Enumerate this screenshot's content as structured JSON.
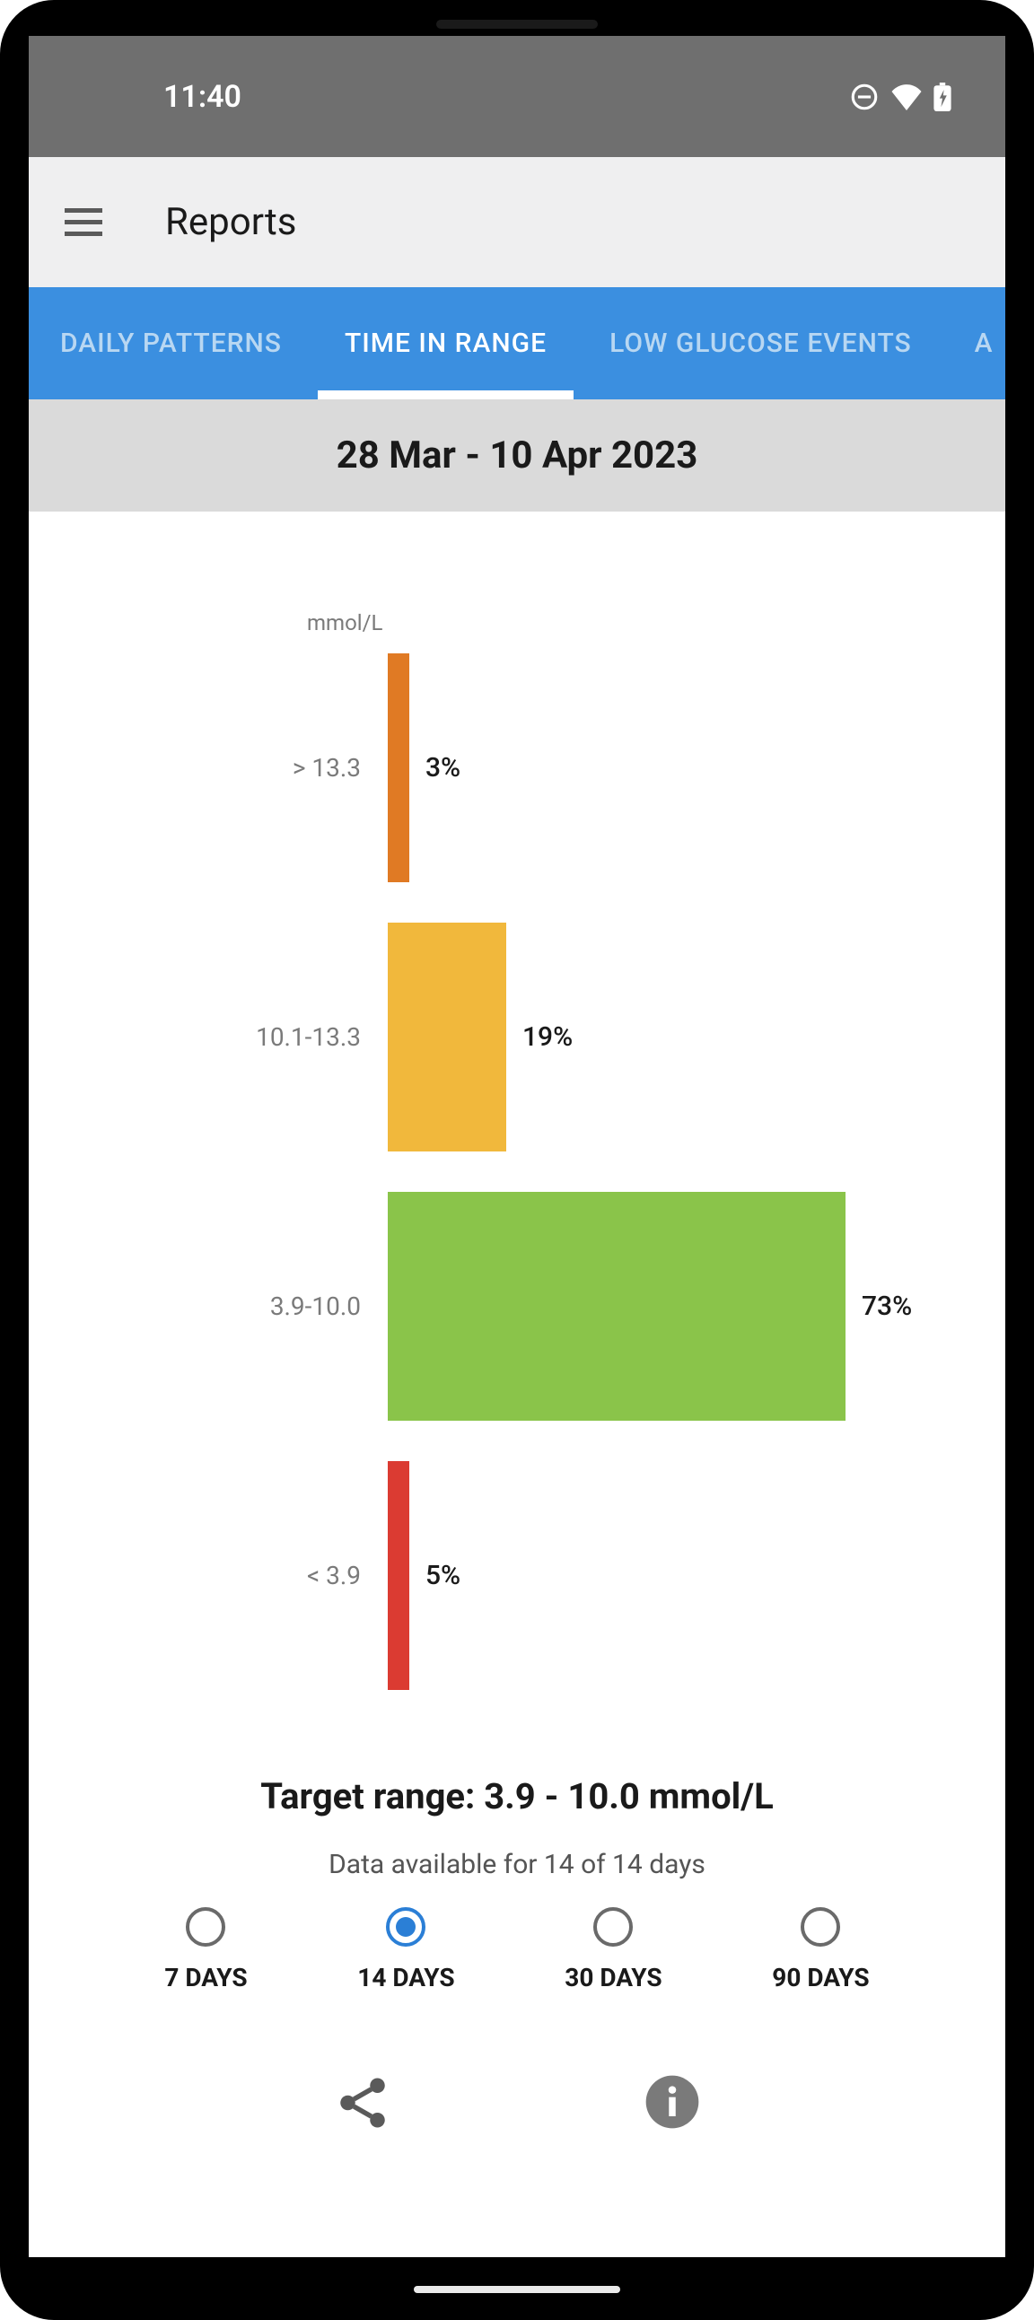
{
  "status": {
    "time": "11:40"
  },
  "header": {
    "title": "Reports"
  },
  "tabs": {
    "items": [
      {
        "label": "DAILY PATTERNS",
        "active": false
      },
      {
        "label": "TIME IN RANGE",
        "active": true
      },
      {
        "label": "LOW GLUCOSE EVENTS",
        "active": false
      },
      {
        "label": "A",
        "active": false
      }
    ]
  },
  "dateRange": "28 Mar - 10 Apr 2023",
  "chart": {
    "unit": "mmol/L",
    "type": "bar",
    "bars": [
      {
        "label": "> 13.3",
        "value": "3%",
        "percent": 3,
        "color": "#e07a24",
        "widthPx": 24
      },
      {
        "label": "10.1-13.3",
        "value": "19%",
        "percent": 19,
        "color": "#f1b83c",
        "widthPx": 132
      },
      {
        "label": "3.9-10.0",
        "value": "73%",
        "percent": 73,
        "color": "#8ac44a",
        "widthPx": 510
      },
      {
        "label": "< 3.9",
        "value": "5%",
        "percent": 5,
        "color": "#db3b32",
        "widthPx": 24
      }
    ],
    "barHeightPx": 255,
    "backgroundColor": "#ffffff"
  },
  "targetRange": "Target range: 3.9 - 10.0 mmol/L",
  "dataAvailable": "Data available for 14 of 14 days",
  "periods": {
    "options": [
      {
        "label": "7 DAYS",
        "selected": false
      },
      {
        "label": "14 DAYS",
        "selected": true
      },
      {
        "label": "30 DAYS",
        "selected": false
      },
      {
        "label": "90 DAYS",
        "selected": false
      }
    ]
  }
}
